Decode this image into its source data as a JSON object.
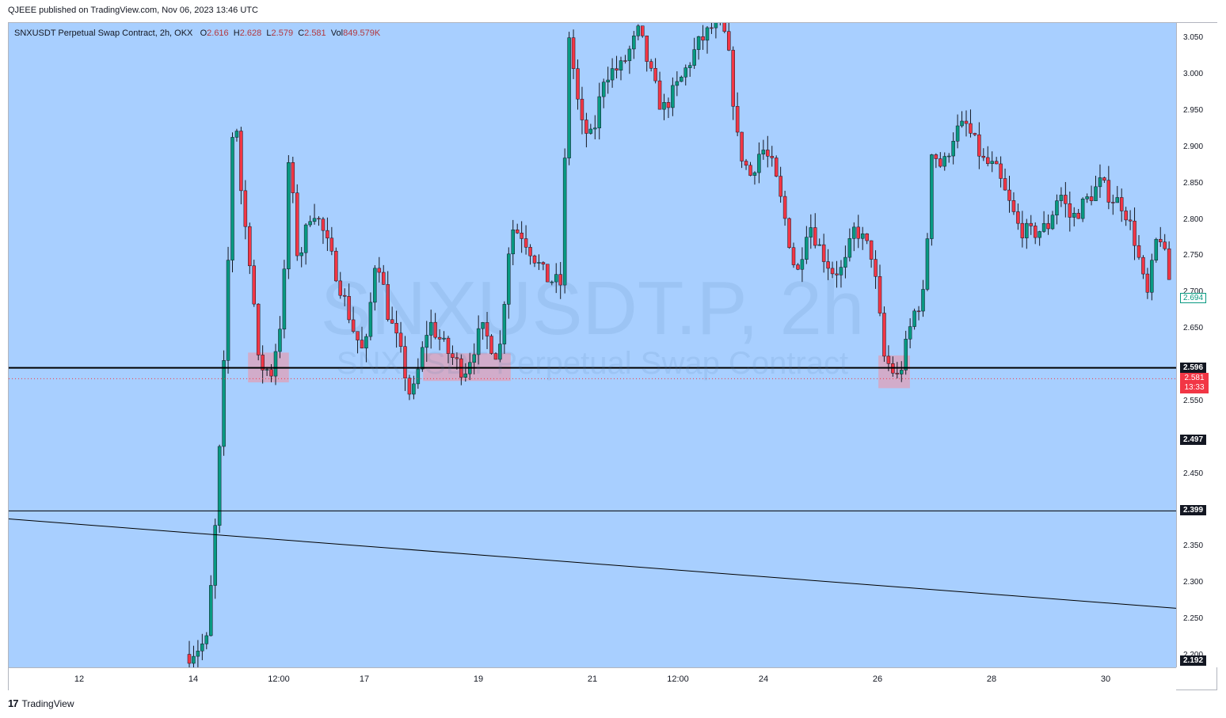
{
  "header": {
    "published": "QJEEE published on TradingView.com, Nov 06, 2023 13:46 UTC"
  },
  "legend": {
    "symbol": "SNXUSDT Perpetual Swap Contract, 2h, OKX",
    "open_label": "O",
    "open": "2.616",
    "high_label": "H",
    "high": "2.628",
    "low_label": "L",
    "low": "2.579",
    "close_label": "C",
    "close": "2.581",
    "vol_label": "Vol",
    "vol": "849.579K"
  },
  "watermark": {
    "line1": "SNXUSDT.P, 2h",
    "line2": "SNXUSDT Perpetual Swap Contract"
  },
  "footer": {
    "logo": "17",
    "brand": "TradingView"
  },
  "colors": {
    "up": "#089981",
    "down": "#f23645",
    "background": "#a8cfff",
    "zone": "#e0a0b8"
  },
  "y_axis": {
    "ticks": [
      "3.050",
      "3.000",
      "2.950",
      "2.900",
      "2.850",
      "2.800",
      "2.750",
      "2.700",
      "2.650",
      "2.550",
      "2.450",
      "2.350",
      "2.300",
      "2.250",
      "2.200"
    ],
    "tick_values": [
      3.05,
      3.0,
      2.95,
      2.9,
      2.85,
      2.8,
      2.75,
      2.7,
      2.65,
      2.55,
      2.45,
      2.35,
      2.3,
      2.25,
      2.2
    ]
  },
  "x_axis": {
    "ticks": [
      "12",
      "14",
      "12:00",
      "17",
      "19",
      "21",
      "12:00",
      "24",
      "26",
      "28",
      "30"
    ]
  },
  "price_labels": {
    "last_value": "2.694",
    "lines": [
      {
        "value": 2.596,
        "label": "2.596"
      },
      {
        "value": 2.497,
        "label": "2.497"
      },
      {
        "value": 2.399,
        "label": "2.399"
      },
      {
        "value": 2.192,
        "label": "2.192"
      }
    ],
    "current": {
      "price": "2.581",
      "countdown": "13:33"
    }
  },
  "chart_data": {
    "type": "candlestick",
    "title": "SNXUSDT Perpetual Swap Contract, 2h, OKX",
    "ylim": [
      2.19,
      3.08
    ],
    "x_ticks": [
      "12",
      "14",
      "12:00",
      "17",
      "19",
      "21",
      "12:00",
      "24",
      "26",
      "28",
      "30"
    ],
    "horizontal_levels": [
      2.596,
      2.399
    ],
    "trendline": {
      "start": 2.388,
      "end": 2.265
    },
    "support_zones": [
      {
        "from": 0.205,
        "to": 0.24,
        "low": 2.576,
        "high": 2.617
      },
      {
        "from": 0.355,
        "to": 0.43,
        "low": 2.578,
        "high": 2.616
      },
      {
        "from": 0.745,
        "to": 0.772,
        "low": 2.568,
        "high": 2.613
      }
    ],
    "keypoints": [
      [
        0.0,
        2.18
      ],
      [
        0.145,
        2.19
      ],
      [
        0.17,
        2.22
      ],
      [
        0.178,
        2.4
      ],
      [
        0.186,
        2.65
      ],
      [
        0.193,
        2.98
      ],
      [
        0.2,
        2.82
      ],
      [
        0.208,
        2.73
      ],
      [
        0.214,
        2.6
      ],
      [
        0.225,
        2.59
      ],
      [
        0.235,
        2.68
      ],
      [
        0.24,
        2.89
      ],
      [
        0.248,
        2.74
      ],
      [
        0.26,
        2.82
      ],
      [
        0.27,
        2.78
      ],
      [
        0.28,
        2.73
      ],
      [
        0.295,
        2.65
      ],
      [
        0.305,
        2.61
      ],
      [
        0.315,
        2.76
      ],
      [
        0.325,
        2.67
      ],
      [
        0.335,
        2.62
      ],
      [
        0.345,
        2.55
      ],
      [
        0.36,
        2.66
      ],
      [
        0.375,
        2.62
      ],
      [
        0.39,
        2.59
      ],
      [
        0.405,
        2.65
      ],
      [
        0.42,
        2.61
      ],
      [
        0.43,
        2.79
      ],
      [
        0.44,
        2.78
      ],
      [
        0.45,
        2.75
      ],
      [
        0.46,
        2.72
      ],
      [
        0.475,
        2.71
      ],
      [
        0.478,
        3.08
      ],
      [
        0.49,
        2.93
      ],
      [
        0.5,
        2.91
      ],
      [
        0.51,
        3.0
      ],
      [
        0.525,
        3.01
      ],
      [
        0.54,
        3.06
      ],
      [
        0.55,
        3.0
      ],
      [
        0.56,
        2.95
      ],
      [
        0.575,
        2.99
      ],
      [
        0.59,
        3.04
      ],
      [
        0.605,
        3.07
      ],
      [
        0.615,
        3.05
      ],
      [
        0.625,
        2.9
      ],
      [
        0.635,
        2.86
      ],
      [
        0.645,
        2.9
      ],
      [
        0.655,
        2.87
      ],
      [
        0.665,
        2.8
      ],
      [
        0.675,
        2.72
      ],
      [
        0.685,
        2.8
      ],
      [
        0.695,
        2.76
      ],
      [
        0.705,
        2.73
      ],
      [
        0.715,
        2.73
      ],
      [
        0.725,
        2.79
      ],
      [
        0.74,
        2.75
      ],
      [
        0.75,
        2.61
      ],
      [
        0.762,
        2.58
      ],
      [
        0.775,
        2.67
      ],
      [
        0.785,
        2.7
      ],
      [
        0.79,
        2.9
      ],
      [
        0.8,
        2.87
      ],
      [
        0.81,
        2.92
      ],
      [
        0.82,
        2.93
      ],
      [
        0.835,
        2.88
      ],
      [
        0.845,
        2.87
      ],
      [
        0.855,
        2.83
      ],
      [
        0.865,
        2.79
      ],
      [
        0.875,
        2.78
      ],
      [
        0.89,
        2.79
      ],
      [
        0.9,
        2.84
      ],
      [
        0.91,
        2.8
      ],
      [
        0.92,
        2.82
      ],
      [
        0.935,
        2.85
      ],
      [
        0.945,
        2.83
      ],
      [
        0.955,
        2.82
      ],
      [
        0.965,
        2.77
      ],
      [
        0.975,
        2.69
      ],
      [
        0.985,
        2.79
      ],
      [
        1.0,
        2.67
      ]
    ],
    "last_candle": {
      "open": 2.616,
      "high": 2.628,
      "low": 2.579,
      "close": 2.581,
      "volume": "849.579K"
    }
  }
}
